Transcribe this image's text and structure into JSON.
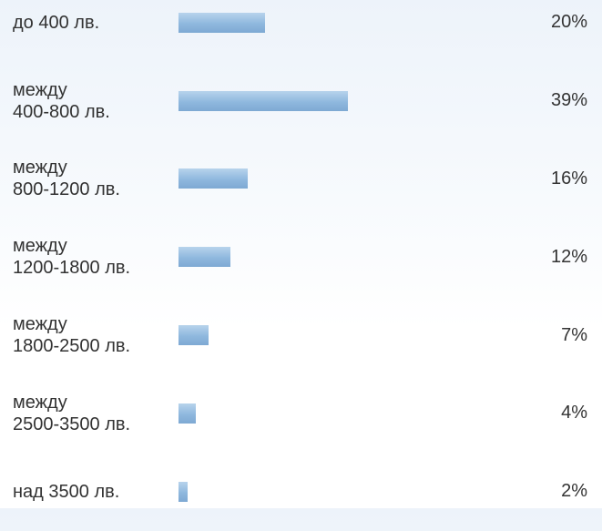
{
  "chart_data": {
    "type": "bar",
    "categories": [
      "до 400 лв.",
      "между\n400-800 лв.",
      "между\n800-1200 лв.",
      "между\n1200-1800 лв.",
      "между\n1800-2500 лв.",
      "между\n2500-3500 лв.",
      "над 3500 лв."
    ],
    "values": [
      20,
      39,
      16,
      12,
      7,
      4,
      2
    ],
    "value_labels": [
      "20%",
      "39%",
      "16%",
      "12%",
      "7%",
      "4%",
      "2%"
    ],
    "xlim": [
      0,
      100
    ],
    "color": "#8fb8de"
  }
}
